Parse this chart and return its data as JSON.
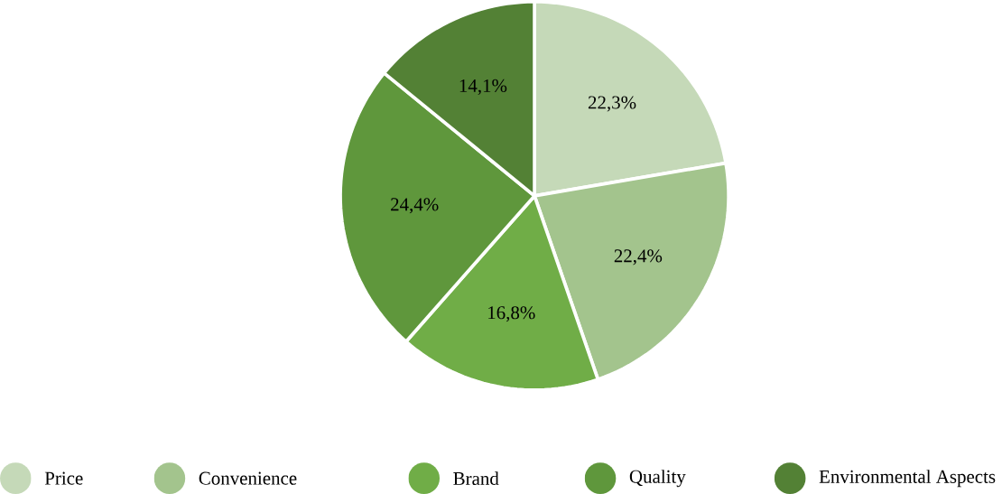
{
  "chart_data": {
    "type": "pie",
    "categories": [
      "Price",
      "Convenience",
      "Brand",
      "Quality",
      "Environmental Aspects"
    ],
    "values": [
      22.3,
      22.4,
      16.8,
      24.4,
      14.1
    ],
    "value_labels": [
      "22,3%",
      "22,4%",
      "16,8%",
      "24,4%",
      "14,1%"
    ],
    "colors": [
      "#c5d9b8",
      "#a3c48d",
      "#70ad47",
      "#5f973c",
      "#538135"
    ],
    "legend": "bottom"
  }
}
